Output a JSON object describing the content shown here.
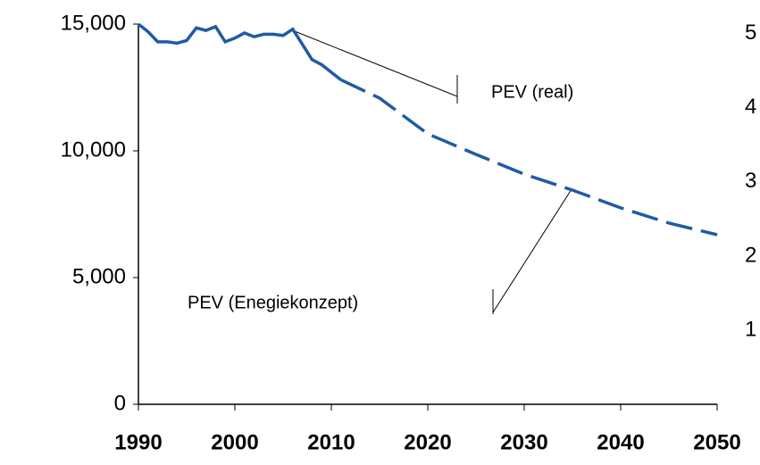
{
  "chart_data": {
    "type": "line",
    "series": [
      {
        "name": "PEV (real)",
        "color": "#1f5aa6",
        "dashed": false,
        "x": [
          1990,
          1991,
          1992,
          1993,
          1994,
          1995,
          1996,
          1997,
          1998,
          1999,
          2000,
          2001,
          2002,
          2003,
          2004,
          2005,
          2006,
          2007,
          2008,
          2009,
          2010,
          2011
        ],
        "values": [
          15000,
          14700,
          14300,
          14300,
          14250,
          14350,
          14850,
          14750,
          14900,
          14300,
          14450,
          14650,
          14500,
          14600,
          14600,
          14550,
          14800,
          14200,
          13600,
          13400,
          13100,
          12800
        ]
      },
      {
        "name": "PEV (Enegiekonzept)",
        "color": "#1f5aa6",
        "dashed": true,
        "x": [
          2011,
          2015,
          2020,
          2025,
          2030,
          2035,
          2040,
          2045,
          2050
        ],
        "values": [
          12800,
          12080,
          10670,
          9860,
          9080,
          8450,
          7750,
          7150,
          6690
        ]
      }
    ],
    "xlim": [
      1990,
      2050
    ],
    "xticks": [
      1990,
      2000,
      2010,
      2020,
      2030,
      2040,
      2050
    ],
    "ylim": [
      0,
      15000
    ],
    "yticks": [
      0,
      {
        "value": 5000,
        "label": "5,000"
      },
      {
        "value": 10000,
        "label": "10,000"
      },
      {
        "value": 15000,
        "label": "15,000"
      }
    ],
    "y2lim": [
      0,
      5.13
    ],
    "y2ticks": [
      1,
      2,
      3,
      4,
      5
    ],
    "grid": false
  }
}
